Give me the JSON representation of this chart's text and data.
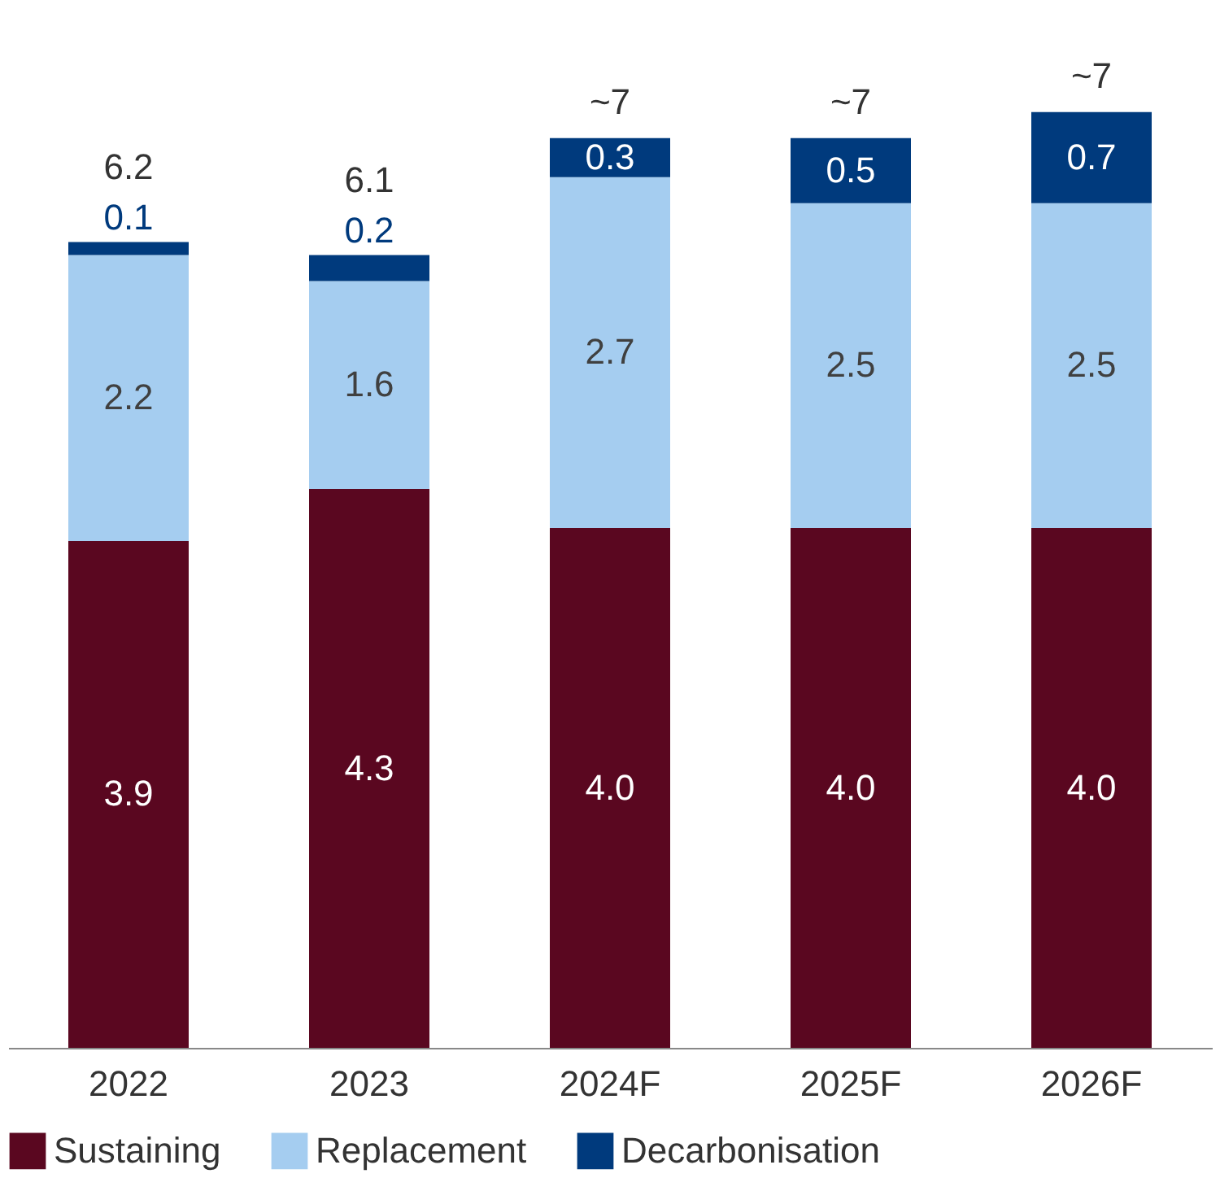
{
  "chart_data": {
    "type": "bar",
    "stacked": true,
    "categories": [
      "2022",
      "2023",
      "2024F",
      "2025F",
      "2026F"
    ],
    "series": [
      {
        "name": "Sustaining",
        "color": "#5a0720",
        "values": [
          3.9,
          4.3,
          4.0,
          4.0,
          4.0
        ],
        "value_labels": [
          "3.9",
          "4.3",
          "4.0",
          "4.0",
          "4.0"
        ]
      },
      {
        "name": "Replacement",
        "color": "#a5cdf0",
        "values": [
          2.2,
          1.6,
          2.7,
          2.5,
          2.5
        ],
        "value_labels": [
          "2.2",
          "1.6",
          "2.7",
          "2.5",
          "2.5"
        ]
      },
      {
        "name": "Decarbonisation",
        "color": "#003a7d",
        "values": [
          0.1,
          0.2,
          0.3,
          0.5,
          0.7
        ],
        "value_labels": [
          "0.1",
          "0.2",
          "0.3",
          "0.5",
          "0.7"
        ]
      }
    ],
    "totals": [
      "6.2",
      "6.1",
      "~7",
      "~7",
      "~7"
    ],
    "legend": "bottom",
    "grid": false
  }
}
